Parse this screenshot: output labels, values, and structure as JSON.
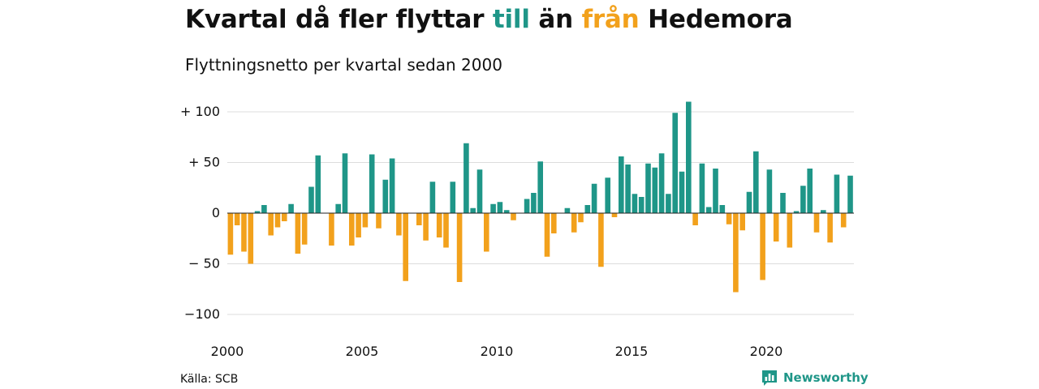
{
  "chart_data": {
    "type": "bar",
    "title_prefix": "Kvartal då fler flyttar ",
    "title_till": "till",
    "title_mid": " än ",
    "title_fran": "från",
    "title_suffix": " Hedemora",
    "subtitle": "Flyttningsnetto per kvartal sedan 2000",
    "xlabel": "",
    "ylabel": "",
    "ylim": [
      -115,
      112
    ],
    "y_ticks": [
      {
        "value": 100,
        "label": "+ 100"
      },
      {
        "value": 50,
        "label": "+  50"
      },
      {
        "value": 0,
        "label": "0"
      },
      {
        "value": -50,
        "label": "− 50"
      },
      {
        "value": -100,
        "label": "−100"
      }
    ],
    "x_ticks": [
      {
        "value": 2000,
        "label": "2000"
      },
      {
        "value": 2005,
        "label": "2005"
      },
      {
        "value": 2010,
        "label": "2010"
      },
      {
        "value": 2015,
        "label": "2015"
      },
      {
        "value": 2020,
        "label": "2020"
      }
    ],
    "grid": true,
    "legend": "none",
    "colors": {
      "positive": "#1f9688",
      "negative": "#f2a11c",
      "grid": "#dddddd",
      "zero": "#222222"
    },
    "series": [
      {
        "start": "2000 Q1",
        "values": [
          -41,
          -12,
          -38,
          -50,
          2,
          8,
          -22,
          -14,
          -8,
          9,
          -40,
          -31,
          26,
          57,
          0,
          -32,
          9,
          59,
          -32,
          -24,
          -14,
          58,
          -15,
          33,
          54,
          -22,
          -67,
          0,
          -12,
          -27,
          31,
          -24,
          -34,
          31,
          -68,
          69,
          5,
          43,
          -38,
          9,
          11,
          3,
          -7,
          0,
          14,
          20,
          51,
          -43,
          -20,
          0,
          5,
          -19,
          -9,
          8,
          29,
          -53,
          35,
          -4,
          56,
          48,
          19,
          16,
          49,
          45,
          59,
          19,
          99,
          41,
          110,
          -12,
          49,
          6,
          44,
          8,
          -11,
          -78,
          -17,
          21,
          61,
          -66,
          43,
          -28,
          20,
          -34,
          2,
          27,
          44,
          -19,
          3,
          -29,
          38,
          -14,
          37
        ]
      }
    ]
  },
  "footer": {
    "source": "Källa: SCB",
    "brand": "Newsworthy",
    "brand_icon": "newsworthy-logo-icon"
  }
}
